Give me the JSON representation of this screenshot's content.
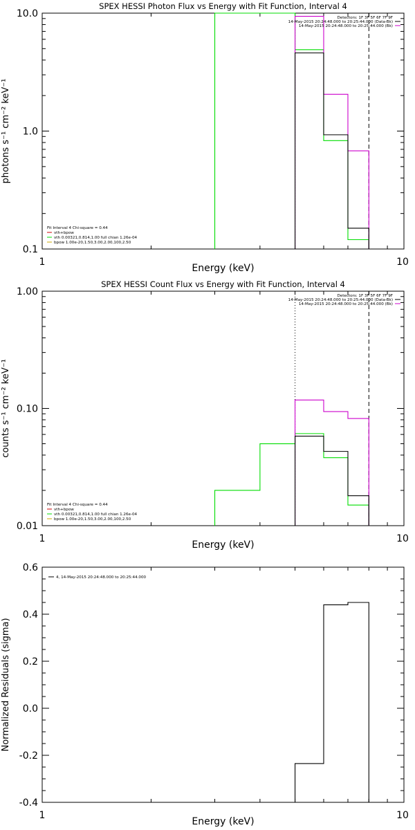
{
  "colors": {
    "data_black": "#000000",
    "data_magenta": "#cc00cc",
    "model_green": "#00dd00",
    "vth_red": "#cc0000",
    "bpow_orange": "#ccaa00"
  },
  "chart_data": [
    {
      "type": "line",
      "title": "SPEX HESSI Photon Flux vs Energy with Fit Function, Interval 4",
      "xlabel": "Energy (keV)",
      "ylabel": "photons s⁻¹ cm⁻² keV⁻¹",
      "xscale": "log",
      "yscale": "log",
      "xlim": [
        1,
        10
      ],
      "ylim": [
        0.1,
        10
      ],
      "xticks": [
        "1",
        "10"
      ],
      "yticks": [
        {
          "v": 0.1,
          "label": "0.1"
        },
        {
          "v": 1,
          "label": "1.0"
        },
        {
          "v": 10,
          "label": "10.0"
        }
      ],
      "vlines": [
        {
          "x": 5,
          "style": "dotted"
        },
        {
          "x": 8,
          "style": "dashed"
        }
      ],
      "legend_top_right": [
        "Detectors: 1F 3F 5F 6F 7F 9F",
        "14-May-2015 20:24:48.000 to 20:25:44.000 (Data-Bk)",
        "14-May-2015 20:24:48.000 to 20:25:44.000 (Bk)"
      ],
      "legend_bottom_left": [
        "Fit Interval 4   Chi-square = 0.44",
        "vth+bpow",
        "vth 0.00321,0.814,1.00  full chian 1.26e-04",
        "bpow 1.00e-20,1.50,3.00,2.00,100,2.50"
      ],
      "series": [
        {
          "color": "#00dd00",
          "edges": [
            3,
            5,
            6,
            7,
            8
          ],
          "values": [
            10,
            4.9,
            0.83,
            0.12
          ]
        },
        {
          "color": "#cc00cc",
          "edges": [
            5,
            6,
            7,
            8
          ],
          "values": [
            9.4,
            2.05,
            0.68
          ]
        },
        {
          "color": "#000000",
          "edges": [
            5,
            6,
            7,
            8
          ],
          "values": [
            4.6,
            0.93,
            0.15
          ]
        }
      ]
    },
    {
      "type": "line",
      "title": "SPEX HESSI Count Flux vs Energy with Fit Function, Interval 4",
      "xlabel": "Energy (keV)",
      "ylabel": "counts s⁻¹ cm⁻² keV⁻¹",
      "xscale": "log",
      "yscale": "log",
      "xlim": [
        1,
        10
      ],
      "ylim": [
        0.01,
        1
      ],
      "xticks": [
        "1",
        "10"
      ],
      "yticks": [
        {
          "v": 0.01,
          "label": "0.01"
        },
        {
          "v": 0.1,
          "label": "0.10"
        },
        {
          "v": 1,
          "label": "1.00"
        }
      ],
      "vlines": [
        {
          "x": 5,
          "style": "dotted"
        },
        {
          "x": 8,
          "style": "dashed"
        }
      ],
      "legend_top_right": [
        "Detectors: 1F 3F 5F 6F 7F 9F",
        "14-May-2015 20:24:48.000 to 20:25:44.000 (Data-Bk)",
        "14-May-2015 20:24:48.000 to 20:25:44.000 (Bk)"
      ],
      "legend_bottom_left": [
        "Fit Interval 4   Chi-square = 0.44",
        "vth+bpow",
        "vth 0.00321,0.814,1.00  full chian 1.26e-04",
        "bpow 1.00e-20,1.50,3.00,2.00,100,2.50"
      ],
      "series": [
        {
          "color": "#00dd00",
          "edges": [
            3,
            4,
            5,
            6,
            7,
            8
          ],
          "values": [
            0.02,
            0.05,
            0.061,
            0.038,
            0.015
          ]
        },
        {
          "color": "#cc00cc",
          "edges": [
            5,
            6,
            7,
            8
          ],
          "values": [
            0.118,
            0.094,
            0.082
          ]
        },
        {
          "color": "#000000",
          "edges": [
            5,
            6,
            7,
            8
          ],
          "values": [
            0.058,
            0.043,
            0.018
          ]
        }
      ]
    },
    {
      "type": "line",
      "title": "",
      "xlabel": "Energy (keV)",
      "ylabel": "Normalized Residuals (sigma)",
      "xscale": "log",
      "yscale": "linear",
      "xlim": [
        1,
        10
      ],
      "ylim": [
        -0.4,
        0.6
      ],
      "xticks": [
        "1",
        "10"
      ],
      "yticks": [
        {
          "v": -0.4,
          "label": "-0.4"
        },
        {
          "v": -0.2,
          "label": "-0.2"
        },
        {
          "v": 0,
          "label": "0.0"
        },
        {
          "v": 0.2,
          "label": "0.2"
        },
        {
          "v": 0.4,
          "label": "0.4"
        },
        {
          "v": 0.6,
          "label": "0.6"
        }
      ],
      "vlines": [],
      "legend_top_left": [
        "4, 14-May-2015 20:24:48.000 to 20:25:44.000"
      ],
      "series": [
        {
          "color": "#000000",
          "edges": [
            5,
            6,
            7,
            8
          ],
          "values": [
            -0.235,
            0.44,
            0.45
          ]
        }
      ]
    }
  ]
}
